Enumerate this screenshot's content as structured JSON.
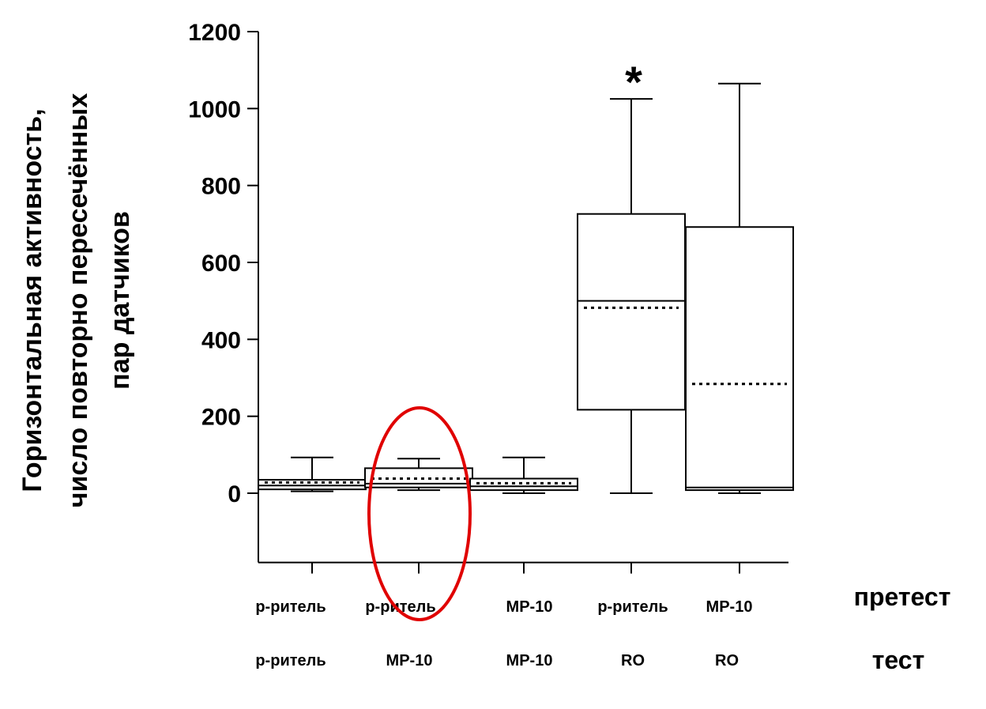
{
  "chart_data": {
    "type": "box",
    "ylabel_lines": [
      "Горизонтальная активность,",
      "число повторно пересечённых",
      "пар датчиков"
    ],
    "y_ticks": [
      0,
      200,
      400,
      600,
      800,
      1000,
      1200
    ],
    "ylim": [
      -180,
      1200
    ],
    "row_labels": {
      "pretest": "претест",
      "test": "тест"
    },
    "categories": [
      {
        "pretest": "р-ритель",
        "test": "р-ритель"
      },
      {
        "pretest": "р-ритель",
        "test": "MP-10"
      },
      {
        "pretest": "MP-10",
        "test": "MP-10"
      },
      {
        "pretest": "р-ритель",
        "test": "RO"
      },
      {
        "pretest": "MP-10",
        "test": "RO"
      }
    ],
    "boxes": [
      {
        "min": 5,
        "q1": 10,
        "median": 20,
        "mean": 28,
        "q3": 35,
        "max": 93,
        "significant": false
      },
      {
        "min": 8,
        "q1": 15,
        "median": 25,
        "mean": 38,
        "q3": 65,
        "max": 90,
        "significant": false
      },
      {
        "min": 0,
        "q1": 8,
        "median": 18,
        "mean": 26,
        "q3": 38,
        "max": 93,
        "significant": false
      },
      {
        "min": 0,
        "q1": 217,
        "median": 500,
        "mean": 482,
        "q3": 726,
        "max": 1025,
        "significant": true
      },
      {
        "min": 0,
        "q1": 8,
        "median": 15,
        "mean": 284,
        "q3": 692,
        "max": 1065,
        "significant": false
      }
    ],
    "significance_marker": "*",
    "highlight": {
      "category_index": 1,
      "color": "#e00000"
    },
    "grid": false,
    "legend": "none"
  }
}
